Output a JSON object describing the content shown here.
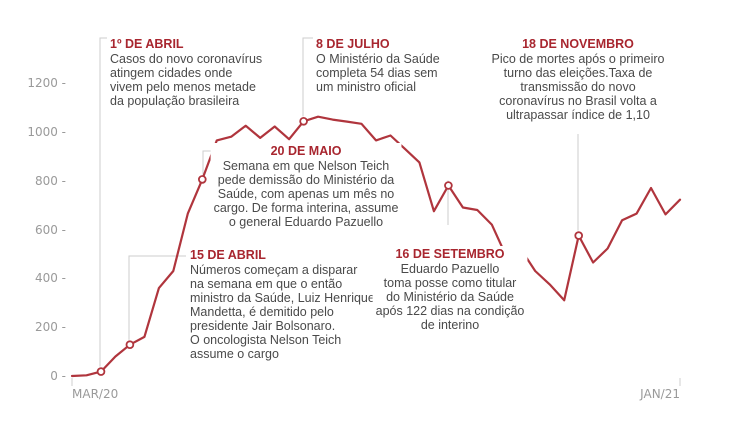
{
  "chart_data": {
    "type": "line",
    "title": "",
    "xlabel": "",
    "ylabel": "",
    "ylim": [
      0,
      1200
    ],
    "y_ticks": [
      "0 -",
      "200 -",
      "400 -",
      "600 -",
      "800 -",
      "1000 -",
      "1200 -"
    ],
    "x_tick_labels": [
      "MAR/20",
      "JAN/21"
    ],
    "grid": false,
    "line_color": "#b0353d",
    "series": [
      {
        "values": [
          0,
          3,
          18,
          80,
          128,
          160,
          360,
          430,
          665,
          805,
          965,
          980,
          1025,
          975,
          1022,
          970,
          1043,
          1062,
          1050,
          1042,
          1033,
          965,
          985,
          930,
          875,
          675,
          780,
          690,
          680,
          620,
          490,
          520,
          430,
          375,
          310,
          575,
          465,
          522,
          638,
          665,
          770,
          662,
          722
        ]
      }
    ],
    "annotations": [
      {
        "index": 2,
        "title": "1º DE ABRIL",
        "lines": [
          "Casos do novo coronavírus",
          "atingem cidades onde",
          "vivem pelo menos metade",
          "da população brasileira"
        ]
      },
      {
        "index": 4,
        "title": "15 DE ABRIL",
        "lines": [
          "Números começam a disparar",
          "na semana em que o então",
          "ministro da Saúde, Luiz Henrique",
          "Mandetta, é demitido pelo",
          "presidente Jair Bolsonaro.",
          "O oncologista Nelson Teich",
          "assume o cargo"
        ]
      },
      {
        "index": 9,
        "title": "20 DE MAIO",
        "lines": [
          "Semana em que Nelson Teich",
          "pede demissão do Ministério da",
          "Saúde, com apenas um mês no",
          "cargo. De forma interina, assume",
          "o general Eduardo Pazuello"
        ]
      },
      {
        "index": 16,
        "title": "8 DE JULHO",
        "lines": [
          "O Ministério da Saúde",
          "completa 54 dias sem",
          "um ministro oficial"
        ]
      },
      {
        "index": 26,
        "title": "16 DE SETEMBRO",
        "lines": [
          "Eduardo Pazuello",
          "toma posse como titular",
          "do Ministério da Saúde",
          "após 122 dias na condição",
          "de interino"
        ]
      },
      {
        "index": 35,
        "title": "18 DE NOVEMBRO",
        "lines": [
          "Pico de mortes após o primeiro",
          "turno das eleições.Taxa de",
          "transmissão do novo",
          "coronavírus no Brasil volta a",
          "ultrapassar índice de 1,10"
        ]
      }
    ]
  }
}
